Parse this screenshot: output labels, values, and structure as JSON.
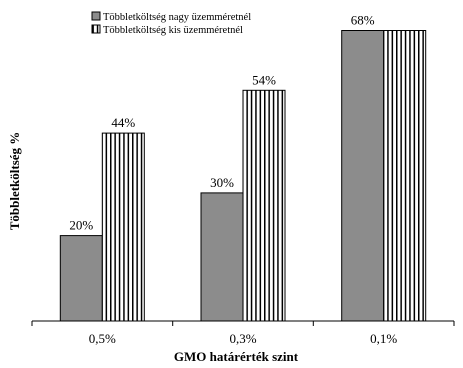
{
  "chart_data": {
    "type": "bar",
    "categories": [
      "0,5%",
      "0,3%",
      "0,1%"
    ],
    "series": [
      {
        "name": "Többletköltség nagy üzemméretnél",
        "values": [
          20,
          30,
          68
        ],
        "labels": [
          "20%",
          "30%",
          "68%"
        ],
        "fill": "#8c8c8c",
        "pattern": "solid"
      },
      {
        "name": "Többletköltség kis üzemméretnél",
        "values": [
          44,
          54,
          68
        ],
        "labels": [
          "44%",
          "54%",
          ""
        ],
        "fill": "#ffffff",
        "pattern": "vertical-stripes"
      }
    ],
    "xlabel": "GMO határérték szint",
    "ylabel": "Többletköltség %",
    "ylim": [
      0,
      70
    ],
    "grid": false,
    "legend": "top-left",
    "colors": {
      "axis": "#000000",
      "bar_outline": "#000000",
      "stripe": "#000000"
    }
  }
}
